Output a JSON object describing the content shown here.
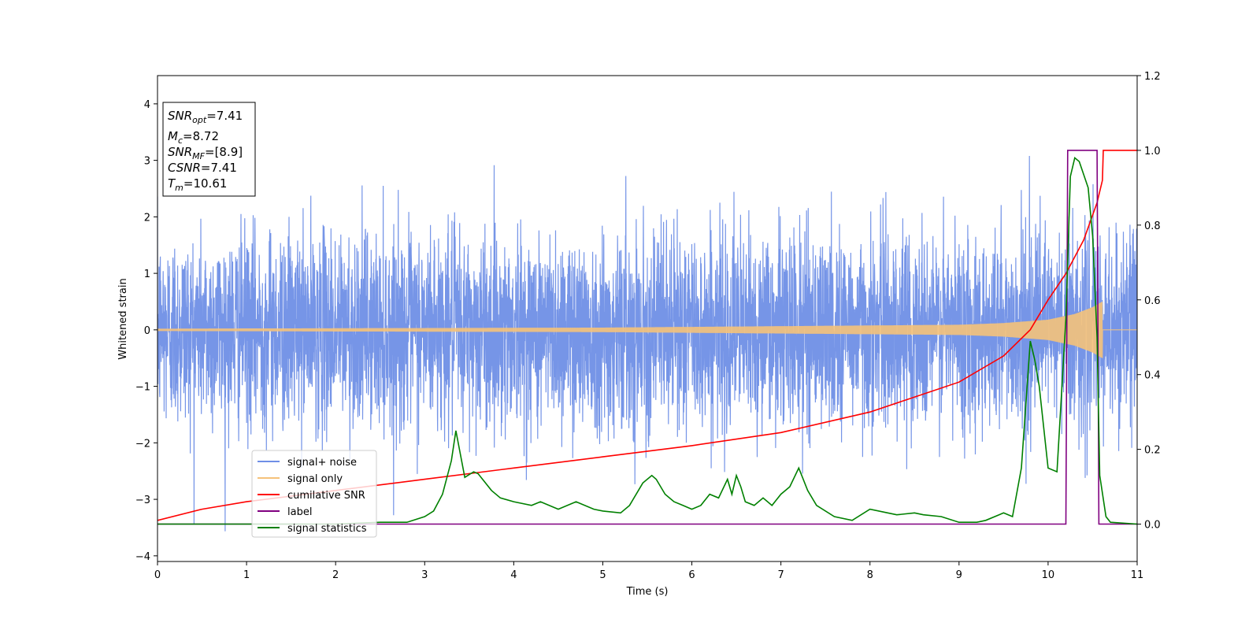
{
  "chart_data": {
    "type": "line",
    "title": "",
    "xlabel": "Time (s)",
    "ylabel": "Whitened strain",
    "xlim": [
      0,
      11
    ],
    "ylim_left": [
      -4.1,
      4.5
    ],
    "ylim_right": [
      -0.1,
      1.2
    ],
    "x_ticks": [
      "0",
      "1",
      "2",
      "3",
      "4",
      "5",
      "6",
      "7",
      "8",
      "9",
      "10",
      "11"
    ],
    "y_ticks_left": [
      "−4",
      "−3",
      "−2",
      "−1",
      "0",
      "1",
      "2",
      "3",
      "4"
    ],
    "y_ticks_right": [
      "0.0",
      "0.2",
      "0.4",
      "0.6",
      "0.8",
      "1.0",
      "1.2"
    ],
    "grid": false,
    "legend_position": "lower-left",
    "annotation": {
      "lines": [
        {
          "sym": "SNR",
          "sub": "opt",
          "value": "=7.41"
        },
        {
          "sym": "M",
          "sub": "c",
          "value": "=8.72"
        },
        {
          "sym": "SNR",
          "sub": "MF",
          "value": "=[8.9]"
        },
        {
          "sym": "CSNR",
          "sub": "",
          "value": "=7.41"
        },
        {
          "sym": "T",
          "sub": "m",
          "value": "=10.61"
        }
      ]
    },
    "series": [
      {
        "name": "signal+ noise",
        "axis": "left",
        "color": "#6f8fe6",
        "kind": "noise",
        "noise_sigma": 0.85
      },
      {
        "name": "signal only",
        "axis": "left",
        "color": "#f5c27a",
        "kind": "chirp",
        "envelope": {
          "x": [
            0,
            5,
            9,
            9.5,
            10,
            10.3,
            10.5,
            10.61
          ],
          "amp": [
            0.02,
            0.04,
            0.09,
            0.12,
            0.18,
            0.28,
            0.4,
            0.5
          ]
        }
      },
      {
        "name": "cumilative SNR",
        "axis": "right",
        "color": "#ff0000",
        "kind": "line",
        "x": [
          0,
          0.5,
          1,
          2,
          3,
          4,
          5,
          6,
          7,
          8,
          9,
          9.5,
          9.8,
          10,
          10.2,
          10.4,
          10.55,
          10.61,
          10.62,
          11
        ],
        "y": [
          0.01,
          0.04,
          0.06,
          0.09,
          0.12,
          0.15,
          0.18,
          0.21,
          0.245,
          0.3,
          0.38,
          0.45,
          0.52,
          0.6,
          0.67,
          0.76,
          0.86,
          0.92,
          1.0,
          1.0
        ]
      },
      {
        "name": "label",
        "axis": "right",
        "color": "#800080",
        "kind": "line",
        "x": [
          0,
          10.2,
          10.22,
          10.55,
          10.57,
          11
        ],
        "y": [
          0,
          0,
          1,
          1,
          0,
          0
        ]
      },
      {
        "name": "signal statistics",
        "axis": "right",
        "color": "#008000",
        "kind": "line",
        "x": [
          0,
          1,
          2,
          2.5,
          2.8,
          3.0,
          3.1,
          3.2,
          3.3,
          3.35,
          3.45,
          3.55,
          3.6,
          3.65,
          3.75,
          3.85,
          4.0,
          4.2,
          4.3,
          4.5,
          4.7,
          4.9,
          5.0,
          5.2,
          5.3,
          5.45,
          5.55,
          5.6,
          5.7,
          5.8,
          5.9,
          6.0,
          6.1,
          6.2,
          6.3,
          6.4,
          6.45,
          6.5,
          6.55,
          6.6,
          6.7,
          6.8,
          6.9,
          7.0,
          7.1,
          7.2,
          7.3,
          7.4,
          7.6,
          7.8,
          8.0,
          8.2,
          8.3,
          8.5,
          8.6,
          8.8,
          9.0,
          9.2,
          9.3,
          9.5,
          9.6,
          9.7,
          9.8,
          9.85,
          9.9,
          10.0,
          10.1,
          10.2,
          10.25,
          10.3,
          10.35,
          10.45,
          10.5,
          10.55,
          10.58,
          10.65,
          10.7,
          11.0
        ],
        "y": [
          0,
          0,
          0,
          0.005,
          0.005,
          0.02,
          0.035,
          0.08,
          0.17,
          0.25,
          0.125,
          0.14,
          0.135,
          0.12,
          0.09,
          0.07,
          0.06,
          0.05,
          0.06,
          0.04,
          0.06,
          0.04,
          0.035,
          0.03,
          0.05,
          0.11,
          0.13,
          0.12,
          0.08,
          0.06,
          0.05,
          0.04,
          0.05,
          0.08,
          0.07,
          0.12,
          0.08,
          0.13,
          0.1,
          0.06,
          0.05,
          0.07,
          0.05,
          0.08,
          0.1,
          0.15,
          0.09,
          0.05,
          0.02,
          0.01,
          0.04,
          0.03,
          0.025,
          0.03,
          0.025,
          0.02,
          0.005,
          0.005,
          0.01,
          0.03,
          0.02,
          0.15,
          0.49,
          0.44,
          0.37,
          0.15,
          0.14,
          0.55,
          0.93,
          0.98,
          0.97,
          0.9,
          0.77,
          0.5,
          0.13,
          0.02,
          0.005,
          0
        ]
      }
    ]
  }
}
